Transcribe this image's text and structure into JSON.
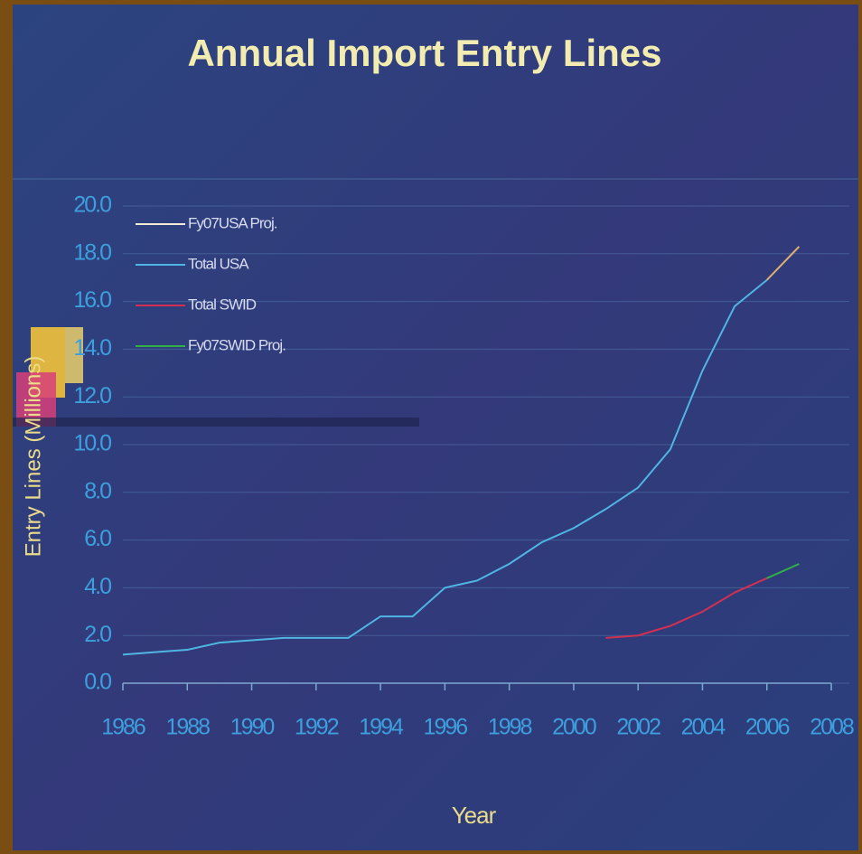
{
  "chart_data": {
    "type": "line",
    "title": "Annual Import Entry Lines",
    "x_label": "Year",
    "y_label": "Entry Lines (Millions)",
    "x": [
      1986,
      1987,
      1988,
      1989,
      1990,
      1991,
      1992,
      1993,
      1994,
      1995,
      1996,
      1997,
      1998,
      1999,
      2000,
      2001,
      2002,
      2003,
      2004,
      2005,
      2006,
      2007
    ],
    "series": [
      {
        "name": "Fy07USA Proj.",
        "color": "#dcb070",
        "values": [
          null,
          null,
          null,
          null,
          null,
          null,
          null,
          null,
          null,
          null,
          null,
          null,
          null,
          null,
          null,
          null,
          null,
          null,
          null,
          null,
          16.9,
          18.3
        ]
      },
      {
        "name": "Total USA",
        "color": "#4fb6e2",
        "values": [
          1.2,
          1.3,
          1.4,
          1.7,
          1.8,
          1.9,
          1.9,
          1.9,
          2.8,
          2.8,
          4.0,
          4.3,
          5.0,
          5.9,
          6.5,
          7.3,
          8.2,
          9.8,
          13.1,
          15.8,
          16.9,
          null
        ]
      },
      {
        "name": "Total SWID",
        "color": "#d23050",
        "values": [
          null,
          null,
          null,
          null,
          null,
          null,
          null,
          null,
          null,
          null,
          null,
          null,
          null,
          null,
          null,
          1.9,
          2.0,
          2.4,
          3.0,
          3.8,
          4.4,
          null
        ]
      },
      {
        "name": "Fy07SWID Proj.",
        "color": "#32b048",
        "values": [
          null,
          null,
          null,
          null,
          null,
          null,
          null,
          null,
          null,
          null,
          null,
          null,
          null,
          null,
          null,
          null,
          null,
          null,
          null,
          null,
          4.4,
          5.0
        ]
      }
    ],
    "xlim": [
      1986,
      2008
    ],
    "xticks": [
      1986,
      1988,
      1990,
      1992,
      1994,
      1996,
      1998,
      2000,
      2002,
      2004,
      2006,
      2008
    ],
    "ylim": [
      0,
      20
    ],
    "yticks": [
      {
        "value": 0,
        "label": "0.0"
      },
      {
        "value": 2,
        "label": "2.0"
      },
      {
        "value": 4,
        "label": "4.0"
      },
      {
        "value": 6,
        "label": "6.0"
      },
      {
        "value": 8,
        "label": "8.0"
      },
      {
        "value": 10,
        "label": "10.0"
      },
      {
        "value": 12,
        "label": "12.0"
      },
      {
        "value": 14,
        "label": "14.0"
      },
      {
        "value": 16,
        "label": "16.0"
      },
      {
        "value": 18,
        "label": "18.0"
      },
      {
        "value": 20,
        "label": "20.0"
      }
    ],
    "grid": true,
    "legend": "upper left"
  }
}
